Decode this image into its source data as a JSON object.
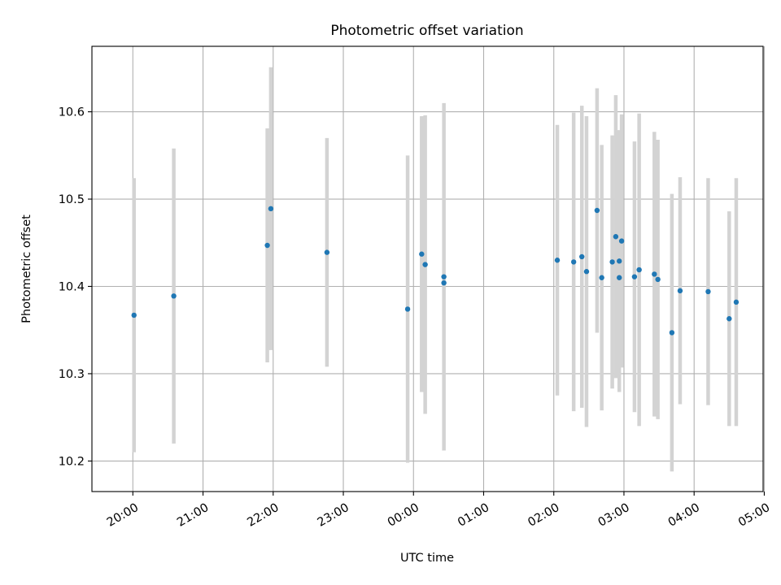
{
  "chart_data": {
    "type": "scatter",
    "title": "Photometric offset variation",
    "xlabel": "UTC time",
    "ylabel": "Photometric offset",
    "x_is_time": true,
    "xlim": [
      "19:25",
      "28:59"
    ],
    "ylim": [
      10.165,
      10.675
    ],
    "x_ticks": [
      {
        "t": "20:00",
        "label": "20:00"
      },
      {
        "t": "21:00",
        "label": "21:00"
      },
      {
        "t": "22:00",
        "label": "22:00"
      },
      {
        "t": "23:00",
        "label": "23:00"
      },
      {
        "t": "24:00",
        "label": "00:00"
      },
      {
        "t": "25:00",
        "label": "01:00"
      },
      {
        "t": "26:00",
        "label": "02:00"
      },
      {
        "t": "27:00",
        "label": "03:00"
      },
      {
        "t": "28:00",
        "label": "04:00"
      },
      {
        "t": "29:00",
        "label": "05:00"
      }
    ],
    "y_ticks": [
      {
        "v": 10.2,
        "label": "10.2"
      },
      {
        "v": 10.3,
        "label": "10.3"
      },
      {
        "v": 10.4,
        "label": "10.4"
      },
      {
        "v": 10.5,
        "label": "10.5"
      },
      {
        "v": 10.6,
        "label": "10.6"
      }
    ],
    "grid": true,
    "colors": {
      "point": "#1f77b4",
      "errorbar": "#d3d3d3",
      "grid": "#b0b0b0"
    },
    "points": [
      {
        "t": "20:01",
        "y": 10.367,
        "err": 0.157
      },
      {
        "t": "20:35",
        "y": 10.389,
        "err": 0.169
      },
      {
        "t": "21:55",
        "y": 10.447,
        "err": 0.134
      },
      {
        "t": "21:58",
        "y": 10.489,
        "err": 0.162
      },
      {
        "t": "22:46",
        "y": 10.439,
        "err": 0.131
      },
      {
        "t": "23:55",
        "y": 10.374,
        "err": 0.176
      },
      {
        "t": "24:07",
        "y": 10.437,
        "err": 0.158
      },
      {
        "t": "24:10",
        "y": 10.425,
        "err": 0.171
      },
      {
        "t": "24:26",
        "y": 10.411,
        "err": 0.199
      },
      {
        "t": "24:26",
        "y": 10.404,
        "err": 0.0
      },
      {
        "t": "26:03",
        "y": 10.43,
        "err": 0.155
      },
      {
        "t": "26:17",
        "y": 10.428,
        "err": 0.171
      },
      {
        "t": "26:24",
        "y": 10.434,
        "err": 0.173
      },
      {
        "t": "26:28",
        "y": 10.417,
        "err": 0.178
      },
      {
        "t": "26:37",
        "y": 10.487,
        "err": 0.14
      },
      {
        "t": "26:41",
        "y": 10.41,
        "err": 0.152
      },
      {
        "t": "26:50",
        "y": 10.428,
        "err": 0.145
      },
      {
        "t": "26:53",
        "y": 10.457,
        "err": 0.162
      },
      {
        "t": "26:56",
        "y": 10.429,
        "err": 0.15
      },
      {
        "t": "26:56",
        "y": 10.41,
        "err": 0.0
      },
      {
        "t": "26:58",
        "y": 10.452,
        "err": 0.145
      },
      {
        "t": "27:09",
        "y": 10.411,
        "err": 0.155
      },
      {
        "t": "27:13",
        "y": 10.419,
        "err": 0.179
      },
      {
        "t": "27:26",
        "y": 10.414,
        "err": 0.163
      },
      {
        "t": "27:29",
        "y": 10.408,
        "err": 0.16
      },
      {
        "t": "27:41",
        "y": 10.347,
        "err": 0.159
      },
      {
        "t": "27:48",
        "y": 10.395,
        "err": 0.13
      },
      {
        "t": "28:12",
        "y": 10.394,
        "err": 0.13
      },
      {
        "t": "28:30",
        "y": 10.363,
        "err": 0.123
      },
      {
        "t": "28:36",
        "y": 10.382,
        "err": 0.142
      }
    ]
  }
}
